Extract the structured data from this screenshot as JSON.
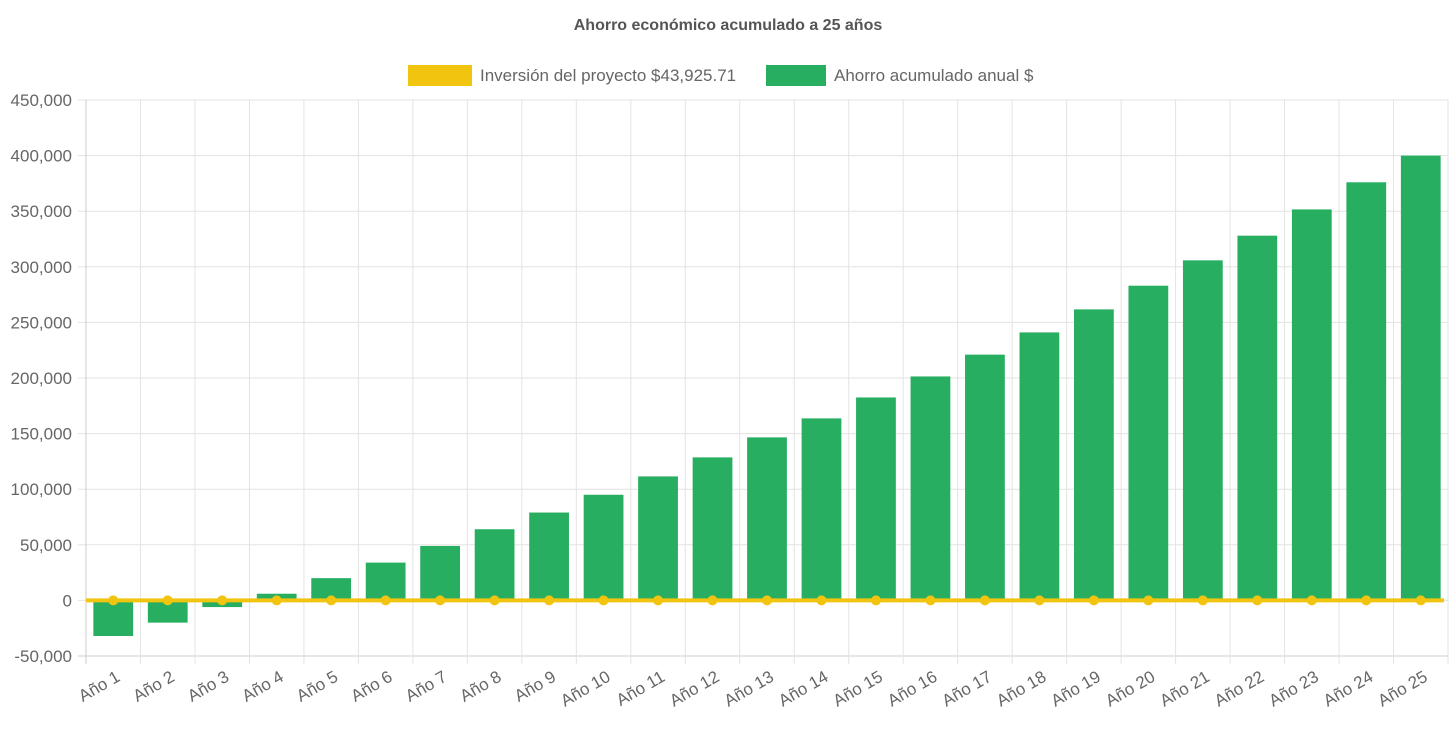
{
  "chart_data": {
    "type": "bar",
    "title": "Ahorro económico acumulado a 25 años",
    "categories": [
      "Año 1",
      "Año 2",
      "Año 3",
      "Año 4",
      "Año 5",
      "Año 6",
      "Año 7",
      "Año 8",
      "Año 9",
      "Año 10",
      "Año 11",
      "Año 12",
      "Año 13",
      "Año 14",
      "Año 15",
      "Año 16",
      "Año 17",
      "Año 18",
      "Año 19",
      "Año 20",
      "Año 21",
      "Año 22",
      "Año 23",
      "Año 24",
      "Año 25"
    ],
    "series": [
      {
        "name": "Inversión del proyecto $43,925.71",
        "type": "line",
        "color": "#f1c40f",
        "values": [
          0,
          0,
          0,
          0,
          0,
          0,
          0,
          0,
          0,
          0,
          0,
          0,
          0,
          0,
          0,
          0,
          0,
          0,
          0,
          0,
          0,
          0,
          0,
          0,
          0
        ]
      },
      {
        "name": "Ahorro acumulado anual $",
        "type": "bar",
        "color": "#27ae60",
        "values": [
          -32000,
          -20000,
          -6000,
          6000,
          20000,
          34000,
          49000,
          64000,
          79000,
          95000,
          111500,
          128600,
          146600,
          163700,
          182500,
          201400,
          221000,
          241000,
          261700,
          283000,
          305800,
          328000,
          351600,
          376000,
          400000
        ]
      }
    ],
    "ylim": [
      -50000,
      450000
    ],
    "yticks": [
      "450,000",
      "400,000",
      "350,000",
      "300,000",
      "250,000",
      "200,000",
      "150,000",
      "100,000",
      "50,000",
      "0",
      "-50,000"
    ],
    "ytick_values": [
      450000,
      400000,
      350000,
      300000,
      250000,
      200000,
      150000,
      100000,
      50000,
      0,
      -50000
    ],
    "grid": true,
    "legend": "top"
  }
}
